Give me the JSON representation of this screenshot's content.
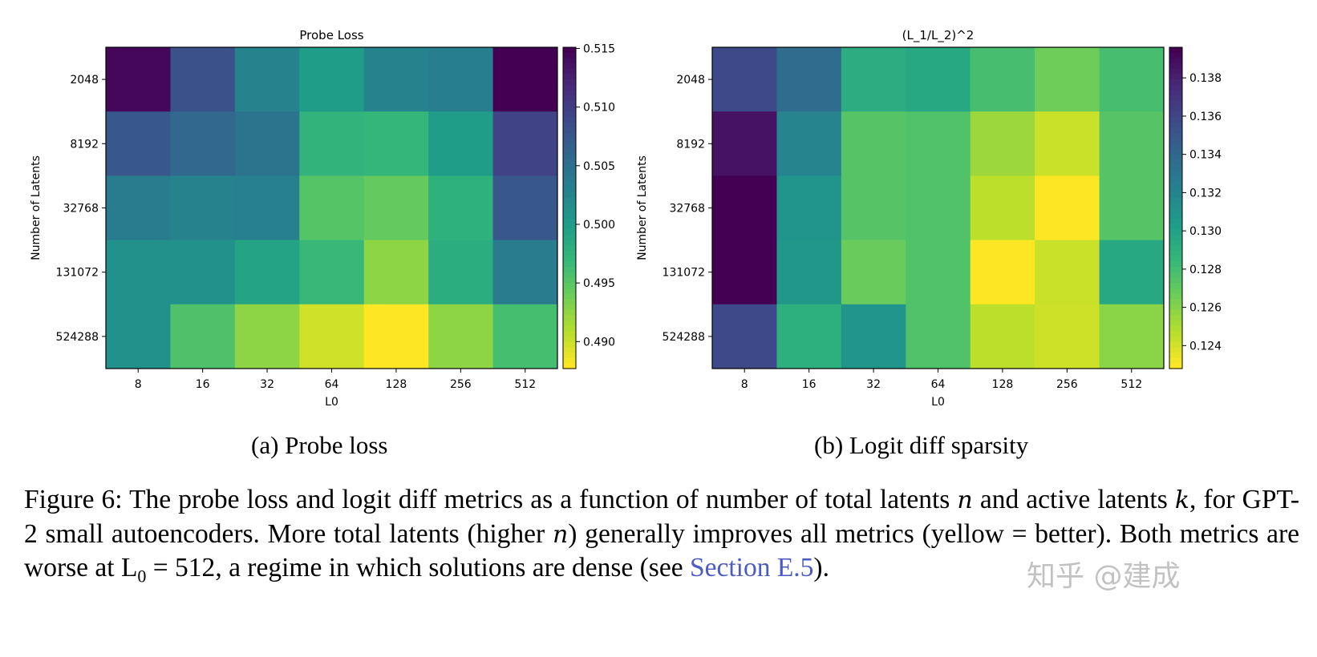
{
  "chart_data": [
    {
      "type": "heatmap",
      "title": "Probe Loss",
      "xlabel": "L0",
      "ylabel": "Number of Latents",
      "x_categories": [
        "8",
        "16",
        "32",
        "64",
        "128",
        "256",
        "512"
      ],
      "y_categories": [
        "2048",
        "8192",
        "32768",
        "131072",
        "524288"
      ],
      "colormap": "viridis_r",
      "colorbar_range": [
        0.4877,
        0.5151
      ],
      "colorbar_ticks": [
        "0.515",
        "0.510",
        "0.505",
        "0.500",
        "0.495",
        "0.490"
      ],
      "values": [
        [
          0.5146,
          0.5083,
          0.5028,
          0.5,
          0.5028,
          0.5033,
          0.5151
        ],
        [
          0.5077,
          0.5061,
          0.5047,
          0.4973,
          0.497,
          0.5,
          0.5096
        ],
        [
          0.5036,
          0.5028,
          0.5031,
          0.4951,
          0.4943,
          0.4976,
          0.5077
        ],
        [
          0.5014,
          0.5014,
          0.4992,
          0.4967,
          0.4924,
          0.4981,
          0.5036
        ],
        [
          0.5014,
          0.4954,
          0.4924,
          0.4896,
          0.4877,
          0.4924,
          0.4959
        ]
      ],
      "subcaption": "(a) Probe loss"
    },
    {
      "type": "heatmap",
      "title": "(L_1/L_2)^2",
      "xlabel": "L0",
      "ylabel": "Number of Latents",
      "x_categories": [
        "8",
        "16",
        "32",
        "64",
        "128",
        "256",
        "512"
      ],
      "y_categories": [
        "2048",
        "8192",
        "32768",
        "131072",
        "524288"
      ],
      "colormap": "viridis_r",
      "colorbar_range": [
        0.1228,
        0.1396
      ],
      "colorbar_ticks": [
        "0.138",
        "0.136",
        "0.134",
        "0.132",
        "0.130",
        "0.128",
        "0.126",
        "0.124"
      ],
      "values": [
        [
          0.1359,
          0.1337,
          0.1292,
          0.1295,
          0.1278,
          0.1265,
          0.1278
        ],
        [
          0.1388,
          0.132,
          0.1273,
          0.1275,
          0.1253,
          0.1241,
          0.1273
        ],
        [
          0.1396,
          0.1309,
          0.1273,
          0.1275,
          0.1245,
          0.1228,
          0.1273
        ],
        [
          0.1396,
          0.1307,
          0.1267,
          0.1275,
          0.1228,
          0.1241,
          0.1295
        ],
        [
          0.1359,
          0.129,
          0.1309,
          0.1275,
          0.1245,
          0.124,
          0.1258
        ]
      ],
      "subcaption": "(b) Logit diff sparsity"
    }
  ],
  "caption": {
    "p1": "Figure 6: The probe loss and logit diff metrics as a function of number of total latents ",
    "n": "n",
    "p2": " and active latents ",
    "k": "k",
    "p3": ", for GPT-2 small autoencoders. More total latents (higher ",
    "n2": "n",
    "p4": ") generally improves all metrics (yellow = better). Both metrics are worse at ",
    "math": "L",
    "math_sub": "0",
    "math_rest": " = 512",
    "p5": ", a regime in which solutions are dense (see ",
    "link": "Section E.5",
    "p6": ")."
  },
  "link_color": "#4a5bc4",
  "watermark": "知乎 @建成"
}
